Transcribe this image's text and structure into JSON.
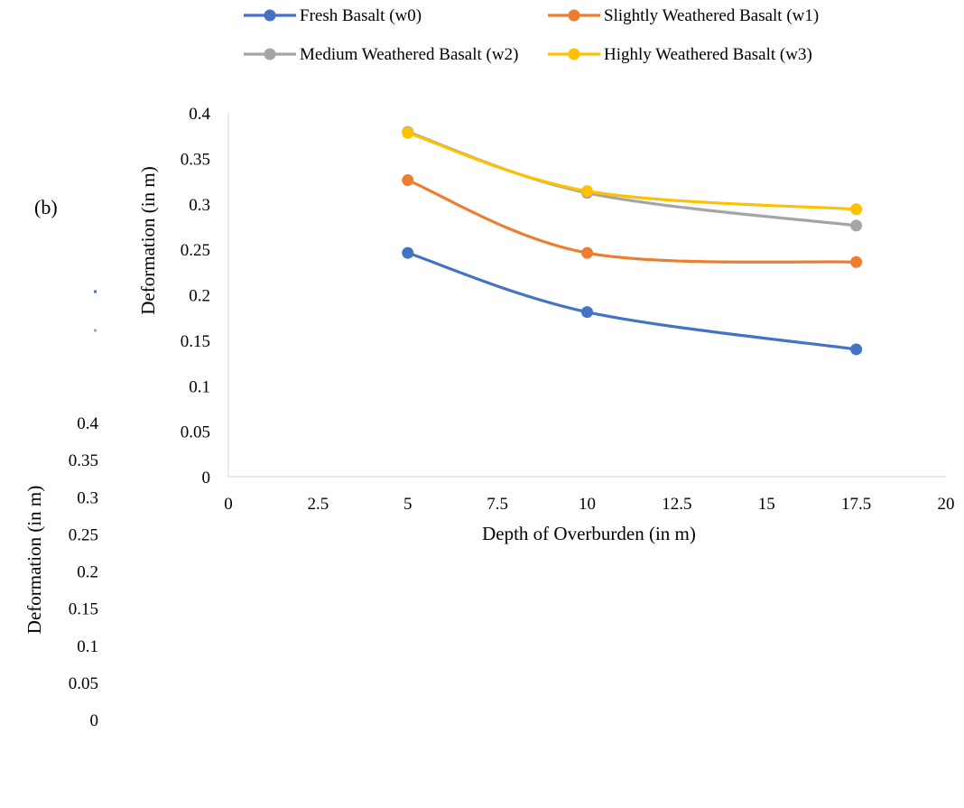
{
  "panel_label": "(b)",
  "chart_data": {
    "type": "line",
    "title": "",
    "xlabel": "Depth of Overburden (in m)",
    "ylabel": "Deformation (in m)",
    "xlim": [
      0,
      20
    ],
    "ylim": [
      0,
      0.4
    ],
    "x_ticks": [
      "0",
      "2.5",
      "5",
      "7.5",
      "10",
      "12.5",
      "15",
      "17.5",
      "20"
    ],
    "y_ticks": [
      "0",
      "0.05",
      "0.1",
      "0.15",
      "0.2",
      "0.25",
      "0.3",
      "0.35",
      "0.4"
    ],
    "smooth": true,
    "grid": false,
    "legend_position": "top",
    "x": [
      5,
      10,
      17.5
    ],
    "series": [
      {
        "name": "Fresh Basalt (w0)",
        "color": "#4472C4",
        "values": [
          0.246,
          0.181,
          0.14
        ]
      },
      {
        "name": "Slightly Weathered Basalt (w1)",
        "color": "#ED7D31",
        "values": [
          0.326,
          0.246,
          0.236
        ]
      },
      {
        "name": "Medium Weathered Basalt (w2)",
        "color": "#A5A5A5",
        "values": [
          0.379,
          0.312,
          0.276
        ]
      },
      {
        "name": "Highly Weathered Basalt (w3)",
        "color": "#FFC000",
        "values": [
          0.378,
          0.314,
          0.294
        ]
      }
    ]
  },
  "background_artifact": {
    "ylabel": "Deformation (in m)",
    "y_ticks": [
      "0",
      "0.05",
      "0.1",
      "0.15",
      "0.2",
      "0.25",
      "0.3",
      "0.35",
      "0.4"
    ],
    "marker_colors": [
      "#4472C4",
      "#A5A5A5"
    ]
  }
}
